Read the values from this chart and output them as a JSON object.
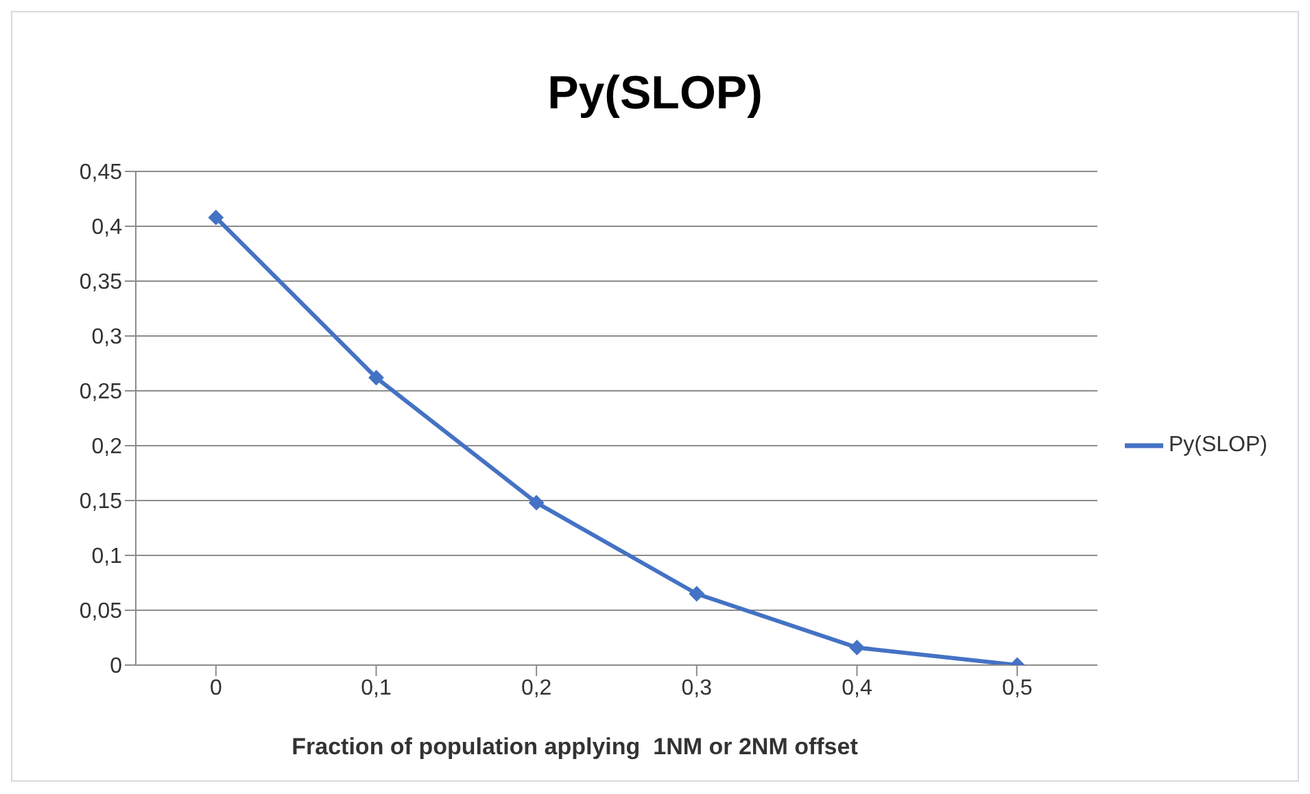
{
  "chart_data": {
    "type": "line",
    "title": "Py(SLOP)",
    "xlabel": "Fraction of population applying  1NM or 2NM offset",
    "categories": [
      "0",
      "0,1",
      "0,2",
      "0,3",
      "0,4",
      "0,5"
    ],
    "series": [
      {
        "name": "Py(SLOP)",
        "color": "#4472c4",
        "values": [
          0.408,
          0.262,
          0.148,
          0.065,
          0.016,
          0
        ]
      }
    ],
    "ylim": [
      0,
      0.45
    ],
    "yticks": [
      0,
      {
        "value": 0.05,
        "label": "0,05"
      },
      {
        "value": 0.1,
        "label": "0,1"
      },
      {
        "value": 0.15,
        "label": "0,15"
      },
      {
        "value": 0.2,
        "label": "0,2"
      },
      {
        "value": 0.25,
        "label": "0,25"
      },
      {
        "value": 0.3,
        "label": "0,3"
      },
      {
        "value": 0.35,
        "label": "0,35"
      },
      {
        "value": 0.4,
        "label": "0,4"
      },
      {
        "value": 0.45,
        "label": "0,45"
      }
    ],
    "grid": "y",
    "legend": "right",
    "marker": "diamond",
    "line_style": "solid"
  }
}
